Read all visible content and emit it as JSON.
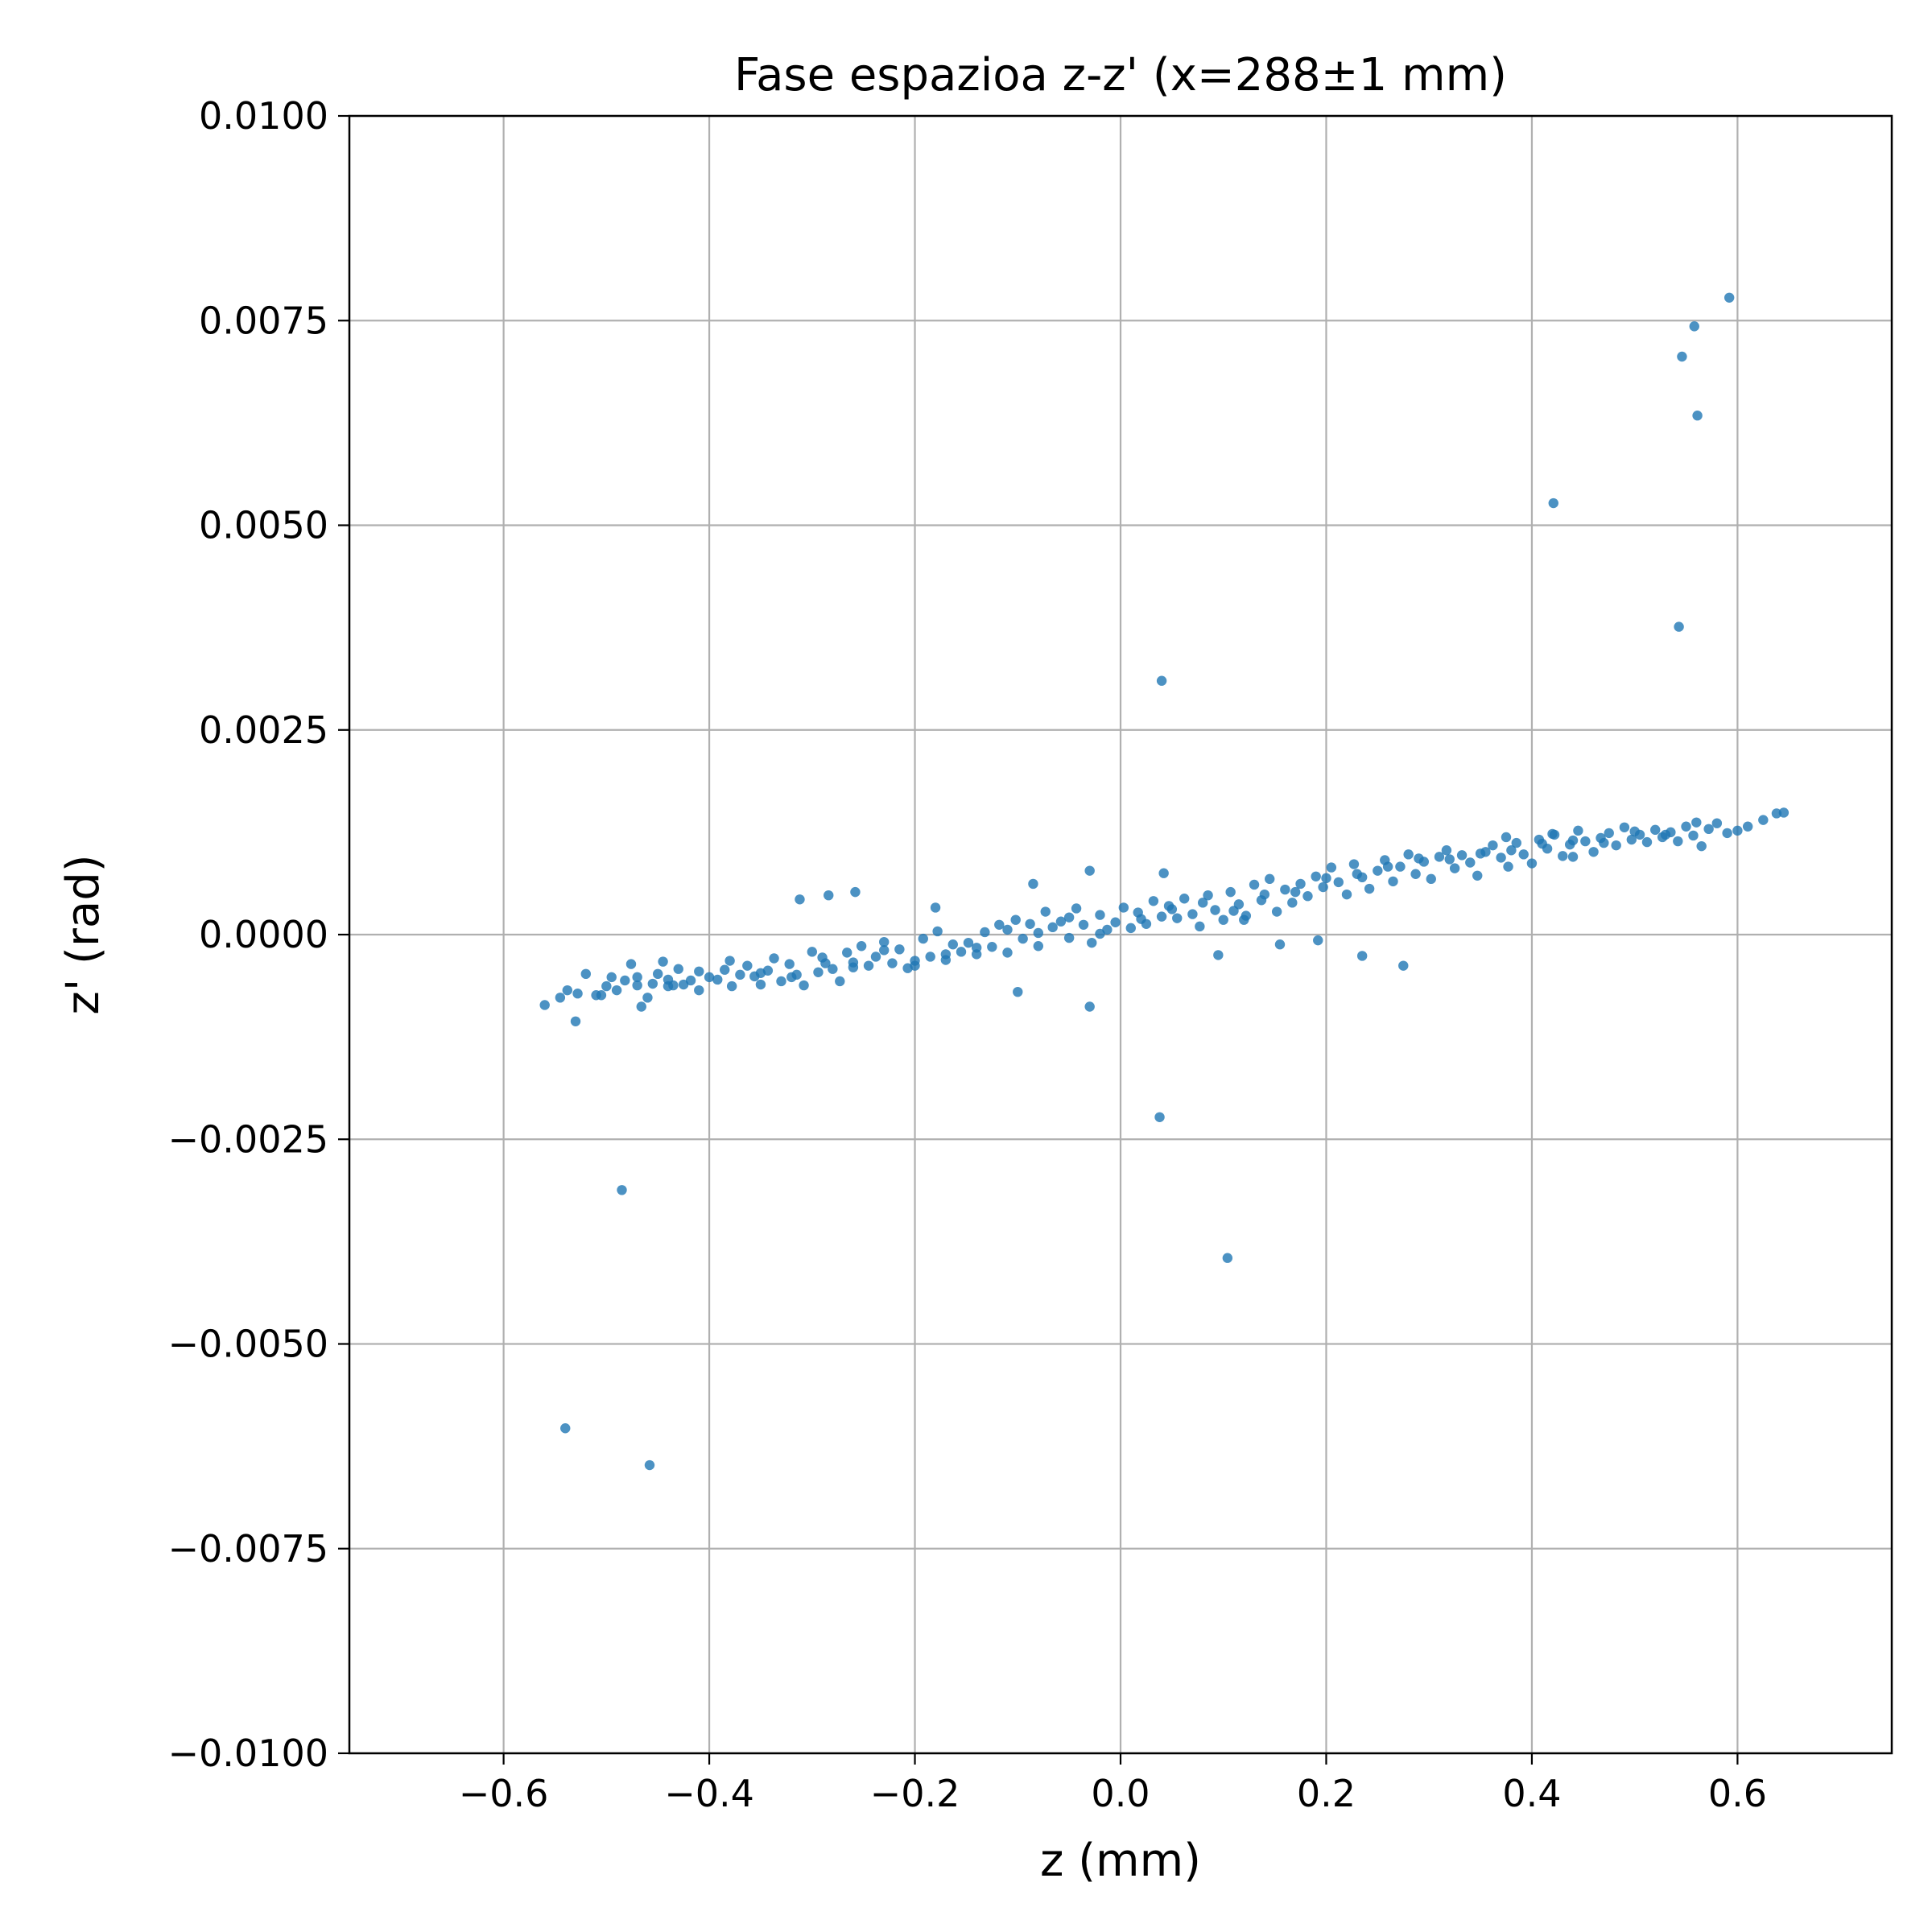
{
  "chart_data": {
    "type": "scatter",
    "title": "Fase espazioa z-z' (x=288±1 mm)",
    "xlabel": "z (mm)",
    "ylabel": "z' (rad)",
    "xlim": [
      -0.75,
      0.75
    ],
    "ylim": [
      -0.01,
      0.01
    ],
    "xticks": [
      -0.6,
      -0.4,
      -0.2,
      0.0,
      0.2,
      0.4,
      0.6
    ],
    "xtick_labels": [
      "−0.6",
      "−0.4",
      "−0.2",
      "0.0",
      "0.2",
      "0.4",
      "0.6"
    ],
    "yticks": [
      -0.01,
      -0.0075,
      -0.005,
      -0.0025,
      0.0,
      0.0025,
      0.005,
      0.0075,
      0.01
    ],
    "ytick_labels": [
      "−0.0100",
      "−0.0075",
      "−0.0050",
      "−0.0025",
      "0.0000",
      "0.0025",
      "0.0050",
      "0.0075",
      "0.0100"
    ],
    "grid": true,
    "marker_color": "#1f77b4",
    "points": [
      [
        -0.56,
        -0.00086
      ],
      [
        -0.545,
        -0.00077
      ],
      [
        -0.538,
        -0.00068
      ],
      [
        -0.53,
        -0.00106
      ],
      [
        -0.528,
        -0.00072
      ],
      [
        -0.51,
        -0.00074
      ],
      [
        -0.505,
        -0.00074
      ],
      [
        -0.5,
        -0.00063
      ],
      [
        -0.495,
        -0.00052
      ],
      [
        -0.49,
        -0.00068
      ],
      [
        -0.482,
        -0.00056
      ],
      [
        -0.476,
        -0.00036
      ],
      [
        -0.47,
        -0.00052
      ],
      [
        -0.466,
        -0.00088
      ],
      [
        -0.46,
        -0.00077
      ],
      [
        -0.455,
        -0.0006
      ],
      [
        -0.45,
        -0.00048
      ],
      [
        -0.445,
        -0.00033
      ],
      [
        -0.44,
        -0.00063
      ],
      [
        -0.435,
        -0.00062
      ],
      [
        -0.43,
        -0.00042
      ],
      [
        -0.425,
        -0.00061
      ],
      [
        -0.418,
        -0.00056
      ],
      [
        -0.41,
        -0.00068
      ],
      [
        -0.4,
        -0.00052
      ],
      [
        -0.392,
        -0.00055
      ],
      [
        -0.385,
        -0.00043
      ],
      [
        -0.378,
        -0.00063
      ],
      [
        -0.37,
        -0.00049
      ],
      [
        -0.363,
        -0.00038
      ],
      [
        -0.356,
        -0.00051
      ],
      [
        -0.35,
        -0.00061
      ],
      [
        -0.343,
        -0.00044
      ],
      [
        -0.337,
        -0.00029
      ],
      [
        -0.33,
        -0.00057
      ],
      [
        -0.322,
        -0.00036
      ],
      [
        -0.315,
        -0.00049
      ],
      [
        -0.308,
        -0.00062
      ],
      [
        -0.3,
        -0.00021
      ],
      [
        -0.294,
        -0.00046
      ],
      [
        -0.287,
        -0.00035
      ],
      [
        -0.28,
        -0.00042
      ],
      [
        -0.273,
        -0.00057
      ],
      [
        -0.266,
        -0.00022
      ],
      [
        -0.26,
        -0.00034
      ],
      [
        -0.252,
        -0.00014
      ],
      [
        -0.245,
        -0.00038
      ],
      [
        -0.238,
        -0.00027
      ],
      [
        -0.23,
        -9e-05
      ],
      [
        -0.222,
        -0.00035
      ],
      [
        -0.215,
        -0.00018
      ],
      [
        -0.207,
        -0.00041
      ],
      [
        -0.2,
        -0.00032
      ],
      [
        -0.192,
        -5e-05
      ],
      [
        -0.185,
        -0.00027
      ],
      [
        -0.178,
        4e-05
      ],
      [
        -0.17,
        -0.00031
      ],
      [
        -0.163,
        -0.00012
      ],
      [
        -0.155,
        -0.00021
      ],
      [
        -0.148,
        -0.0001
      ],
      [
        -0.14,
        -0.00024
      ],
      [
        -0.132,
        3e-05
      ],
      [
        -0.125,
        -0.00015
      ],
      [
        -0.118,
        0.00012
      ],
      [
        -0.11,
        -0.00022
      ],
      [
        -0.102,
        0.00018
      ],
      [
        -0.095,
        -5e-05
      ],
      [
        -0.088,
        0.00013
      ],
      [
        -0.08,
        -0.00014
      ],
      [
        -0.073,
        0.00028
      ],
      [
        -0.066,
        9e-05
      ],
      [
        -0.058,
        0.00016
      ],
      [
        -0.05,
        -4e-05
      ],
      [
        -0.043,
        0.00032
      ],
      [
        -0.036,
        0.00012
      ],
      [
        -0.028,
        -0.0001
      ],
      [
        -0.02,
        0.00024
      ],
      [
        -0.013,
        6e-05
      ],
      [
        -0.005,
        0.00015
      ],
      [
        0.003,
        0.00033
      ],
      [
        0.01,
        8e-05
      ],
      [
        0.017,
        0.00027
      ],
      [
        0.025,
        0.00013
      ],
      [
        0.032,
        0.00041
      ],
      [
        0.04,
        0.00022
      ],
      [
        0.047,
        0.00035
      ],
      [
        0.055,
        0.0002
      ],
      [
        0.062,
        0.00044
      ],
      [
        0.07,
        0.00025
      ],
      [
        0.077,
        0.0001
      ],
      [
        0.085,
        0.00048
      ],
      [
        0.092,
        0.0003
      ],
      [
        0.1,
        0.00018
      ],
      [
        0.107,
        0.00052
      ],
      [
        0.115,
        0.00037
      ],
      [
        0.122,
        0.00023
      ],
      [
        0.13,
        0.00061
      ],
      [
        0.137,
        0.00042
      ],
      [
        0.145,
        0.00068
      ],
      [
        0.152,
        0.00028
      ],
      [
        0.16,
        0.00055
      ],
      [
        0.167,
        0.00039
      ],
      [
        0.175,
        0.00062
      ],
      [
        0.182,
        0.00047
      ],
      [
        0.19,
        0.00071
      ],
      [
        0.197,
        0.00058
      ],
      [
        0.205,
        0.00082
      ],
      [
        0.212,
        0.00064
      ],
      [
        0.22,
        0.00049
      ],
      [
        0.227,
        0.00086
      ],
      [
        0.235,
        0.0007
      ],
      [
        0.242,
        0.00056
      ],
      [
        0.25,
        0.00078
      ],
      [
        0.257,
        0.00091
      ],
      [
        0.265,
        0.00065
      ],
      [
        0.272,
        0.00083
      ],
      [
        0.28,
        0.00098
      ],
      [
        0.287,
        0.00074
      ],
      [
        0.295,
        0.00089
      ],
      [
        0.302,
        0.00068
      ],
      [
        0.31,
        0.00095
      ],
      [
        0.317,
        0.00103
      ],
      [
        0.325,
        0.00081
      ],
      [
        0.332,
        0.00097
      ],
      [
        0.34,
        0.00088
      ],
      [
        0.347,
        0.00072
      ],
      [
        0.355,
        0.00101
      ],
      [
        0.362,
        0.00109
      ],
      [
        0.37,
        0.00094
      ],
      [
        0.377,
        0.00083
      ],
      [
        0.385,
        0.00112
      ],
      [
        0.392,
        0.00098
      ],
      [
        0.4,
        0.00087
      ],
      [
        0.407,
        0.00116
      ],
      [
        0.415,
        0.00105
      ],
      [
        0.422,
        0.00122
      ],
      [
        0.43,
        0.00096
      ],
      [
        0.437,
        0.0011
      ],
      [
        0.445,
        0.00127
      ],
      [
        0.452,
        0.00114
      ],
      [
        0.46,
        0.00101
      ],
      [
        0.467,
        0.00118
      ],
      [
        0.475,
        0.00124
      ],
      [
        0.482,
        0.00109
      ],
      [
        0.49,
        0.00131
      ],
      [
        0.497,
        0.00116
      ],
      [
        0.505,
        0.00122
      ],
      [
        0.512,
        0.00113
      ],
      [
        0.52,
        0.00128
      ],
      [
        0.527,
        0.00119
      ],
      [
        0.535,
        0.00125
      ],
      [
        0.542,
        0.00114
      ],
      [
        0.55,
        0.00132
      ],
      [
        0.557,
        0.00121
      ],
      [
        0.565,
        0.00108
      ],
      [
        0.572,
        0.00129
      ],
      [
        0.58,
        0.00136
      ],
      [
        0.59,
        0.00124
      ],
      [
        0.6,
        0.00127
      ],
      [
        0.61,
        0.00132
      ],
      [
        0.625,
        0.0014
      ],
      [
        0.638,
        0.00148
      ],
      [
        0.645,
        0.00149
      ],
      [
        -0.52,
        -0.00048
      ],
      [
        -0.47,
        -0.00062
      ],
      [
        -0.44,
        -0.00055
      ],
      [
        -0.41,
        -0.00045
      ],
      [
        -0.38,
        -0.00032
      ],
      [
        -0.35,
        -0.00047
      ],
      [
        -0.32,
        -0.00052
      ],
      [
        -0.29,
        -0.00028
      ],
      [
        -0.26,
        -0.0004
      ],
      [
        -0.23,
        -0.00019
      ],
      [
        -0.2,
        -0.00038
      ],
      [
        -0.17,
        -0.00024
      ],
      [
        -0.14,
        -0.00016
      ],
      [
        -0.11,
        6e-05
      ],
      [
        -0.08,
        2e-05
      ],
      [
        -0.05,
        0.00021
      ],
      [
        -0.02,
        1e-05
      ],
      [
        0.02,
        0.00019
      ],
      [
        0.05,
        0.00031
      ],
      [
        0.08,
        0.00039
      ],
      [
        0.11,
        0.00029
      ],
      [
        0.14,
        0.00049
      ],
      [
        0.17,
        0.00052
      ],
      [
        0.2,
        0.00069
      ],
      [
        0.23,
        0.00074
      ],
      [
        0.26,
        0.00083
      ],
      [
        0.29,
        0.00093
      ],
      [
        0.32,
        0.00092
      ],
      [
        0.35,
        0.00099
      ],
      [
        0.38,
        0.00103
      ],
      [
        0.41,
        0.00111
      ],
      [
        0.44,
        0.00115
      ],
      [
        0.47,
        0.00112
      ],
      [
        0.5,
        0.00126
      ],
      [
        0.53,
        0.00122
      ],
      [
        0.56,
        0.00137
      ],
      [
        -0.312,
        0.00043
      ],
      [
        -0.284,
        0.00048
      ],
      [
        -0.258,
        0.00052
      ],
      [
        -0.18,
        0.00033
      ],
      [
        -0.085,
        0.00062
      ],
      [
        -0.03,
        0.00078
      ],
      [
        0.042,
        0.00075
      ],
      [
        0.12,
        0.00018
      ],
      [
        -0.1,
        -0.0007
      ],
      [
        -0.03,
        -0.00088
      ],
      [
        0.095,
        -0.00025
      ],
      [
        0.155,
        -0.00012
      ],
      [
        0.192,
        -7e-05
      ],
      [
        0.235,
        -0.00026
      ],
      [
        0.275,
        -0.00038
      ],
      [
        0.42,
        0.00123
      ],
      [
        0.375,
        0.00119
      ],
      [
        0.44,
        0.00095
      ],
      [
        0.04,
        0.0031
      ],
      [
        0.038,
        -0.00223
      ],
      [
        0.104,
        -0.00395
      ],
      [
        -0.485,
        -0.00312
      ],
      [
        -0.54,
        -0.00603
      ],
      [
        -0.458,
        -0.00648
      ],
      [
        0.421,
        0.00527
      ],
      [
        0.543,
        0.00376
      ],
      [
        0.561,
        0.00634
      ],
      [
        0.546,
        0.00706
      ],
      [
        0.558,
        0.00743
      ],
      [
        0.592,
        0.00778
      ]
    ]
  }
}
